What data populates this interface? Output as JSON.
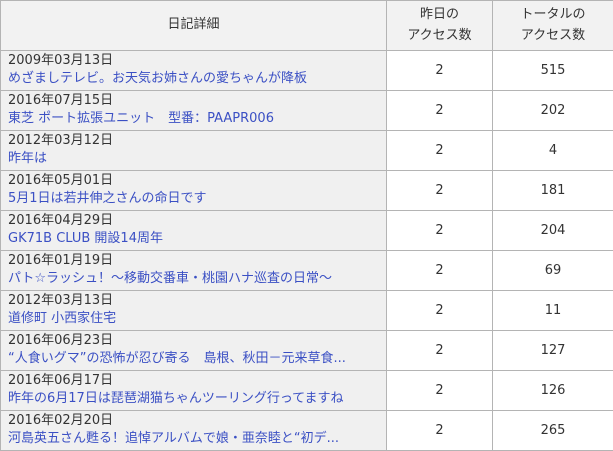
{
  "colors": {
    "header-bg": "#f2f2f2",
    "detail-bg": "#f0f0f0",
    "num-bg": "#ffffff",
    "inner-border": "#b4b4b4",
    "outer-border": "#c9c9c9",
    "link-color": "#3b50c4"
  },
  "table": {
    "headers": [
      "日記詳細",
      "昨日の\nアクセス数",
      "トータルの\nアクセス数"
    ],
    "rows": [
      {
        "date": "2009年03月13日",
        "title": "めざましテレビ。お天気お姉さんの愛ちゃんが降板",
        "yesterday": "2",
        "total": "515"
      },
      {
        "date": "2016年07月15日",
        "title": "東芝 ポート拡張ユニット　型番：PAAPR006",
        "yesterday": "2",
        "total": "202"
      },
      {
        "date": "2012年03月12日",
        "title": "昨年は",
        "yesterday": "2",
        "total": "4"
      },
      {
        "date": "2016年05月01日",
        "title": "5月1日は若井伸之さんの命日です",
        "yesterday": "2",
        "total": "181"
      },
      {
        "date": "2016年04月29日",
        "title": "GK71B CLUB 開設14周年",
        "yesterday": "2",
        "total": "204"
      },
      {
        "date": "2016年01月19日",
        "title": "パト☆ラッシュ！～移動交番車・桃園ハナ巡査の日常～",
        "yesterday": "2",
        "total": "69"
      },
      {
        "date": "2012年03月13日",
        "title": "道修町 小西家住宅",
        "yesterday": "2",
        "total": "11"
      },
      {
        "date": "2016年06月23日",
        "title": "“人食いグマ”の恐怖が忍び寄る　島根、秋田－元来草食...",
        "yesterday": "2",
        "total": "127"
      },
      {
        "date": "2016年06月17日",
        "title": "昨年の6月17日は琵琶湖猫ちゃんツーリング行ってますね",
        "yesterday": "2",
        "total": "126"
      },
      {
        "date": "2016年02月20日",
        "title": "河島英五さん甦る！追悼アルバムで娘・亜奈睦と“初デ...",
        "yesterday": "2",
        "total": "265"
      }
    ]
  }
}
